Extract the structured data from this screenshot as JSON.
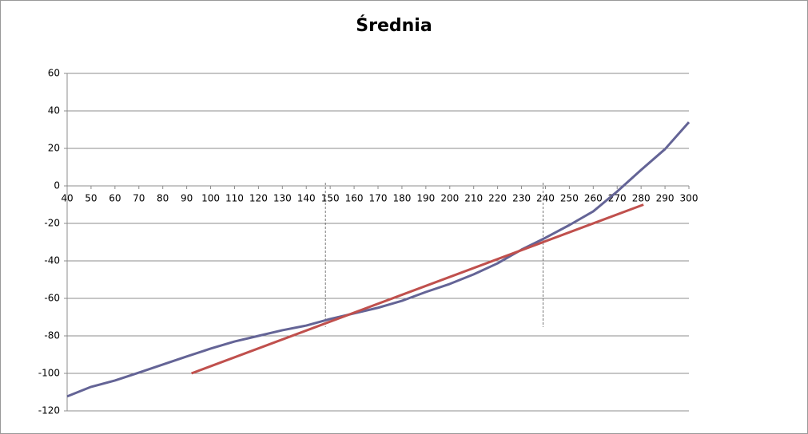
{
  "chart_data": {
    "type": "line",
    "title": "Średnia",
    "xlim": [
      40,
      300
    ],
    "xticks": [
      40,
      50,
      60,
      70,
      80,
      90,
      100,
      110,
      120,
      130,
      140,
      150,
      160,
      170,
      180,
      190,
      200,
      210,
      220,
      230,
      240,
      250,
      260,
      270,
      280,
      290,
      300
    ],
    "ylim": [
      -120,
      60
    ],
    "yticks": [
      -120,
      -100,
      -80,
      -60,
      -40,
      -20,
      0,
      20,
      40,
      60
    ],
    "grid": true,
    "vlines": [
      148,
      239
    ],
    "series": [
      {
        "color": "#646496",
        "x": [
          40,
          50,
          60,
          70,
          80,
          90,
          100,
          110,
          120,
          130,
          140,
          150,
          160,
          170,
          180,
          190,
          200,
          210,
          220,
          230,
          240,
          250,
          260,
          270,
          280,
          290,
          300
        ],
        "values": [
          -112.3,
          -107.2,
          -103.8,
          -99.6,
          -95.3,
          -91,
          -86.8,
          -83,
          -80,
          -77,
          -74.5,
          -71,
          -68,
          -65,
          -61.3,
          -56.6,
          -52.3,
          -47.2,
          -41.3,
          -34,
          -27.7,
          -20.9,
          -13.6,
          -3,
          8.5,
          19.6,
          34
        ]
      },
      {
        "color": "#c0504d",
        "x": [
          92,
          281
        ],
        "values": [
          -100,
          -10
        ]
      }
    ]
  }
}
